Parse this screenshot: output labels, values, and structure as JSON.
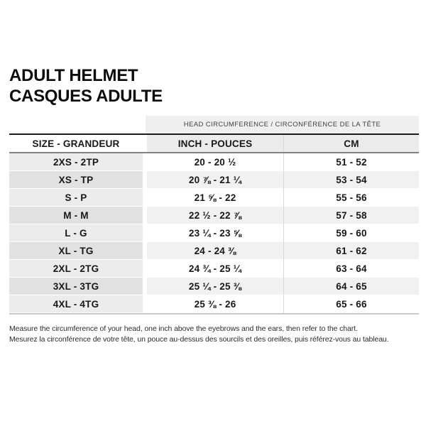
{
  "title": {
    "line1": "ADULT HELMET",
    "line2": "CASQUES ADULTE"
  },
  "table": {
    "banner": "HEAD CIRCUMFERENCE / CIRCONFÉRENCE DE LA TÊTE",
    "headers": {
      "size": "SIZE - GRANDEUR",
      "inch": "INCH - POUCES",
      "cm": "CM"
    },
    "rows": [
      {
        "size": "2XS - 2TP",
        "inch": "20 - 20 ½",
        "cm": "51 - 52"
      },
      {
        "size": "XS - TP",
        "inch": "20 ⅞ - 21 ¼",
        "cm": "53 - 54"
      },
      {
        "size": "S - P",
        "inch": "21 ⅝ - 22",
        "cm": "55 - 56"
      },
      {
        "size": "M - M",
        "inch": "22 ½ - 22 ⅞",
        "cm": "57 - 58"
      },
      {
        "size": "L - G",
        "inch": "23 ¼ - 23 ⅝",
        "cm": "59 - 60"
      },
      {
        "size": "XL - TG",
        "inch": "24 - 24 ⅜",
        "cm": "61 - 62"
      },
      {
        "size": "2XL - 2TG",
        "inch": "24 ¾ - 25 ¼",
        "cm": "63 - 64"
      },
      {
        "size": "3XL - 3TG",
        "inch": "25 ¼ - 25 ⅜",
        "cm": "64 - 65"
      },
      {
        "size": "4XL - 4TG",
        "inch": "25 ⅜ - 26",
        "cm": "65 - 66"
      }
    ]
  },
  "footer": {
    "line1": "Measure the circumference of your head, one inch above the eyebrows and the ears, then refer to the chart.",
    "line2": "Mesurez la circonférence de votre tête, un pouce au-dessus des sourcils et des oreilles, puis référez-vous au tableau."
  },
  "colors": {
    "banner_bg": "#efefef",
    "header_bg": "#ebebeb",
    "size_col_odd": "#ececec",
    "size_col_even": "#e1e1e1",
    "data_row_odd": "#ffffff",
    "data_row_even": "#f1f1f1",
    "top_border": "#1b1b1b",
    "header_border": "#828282",
    "bottom_border": "#c9c9c9"
  }
}
